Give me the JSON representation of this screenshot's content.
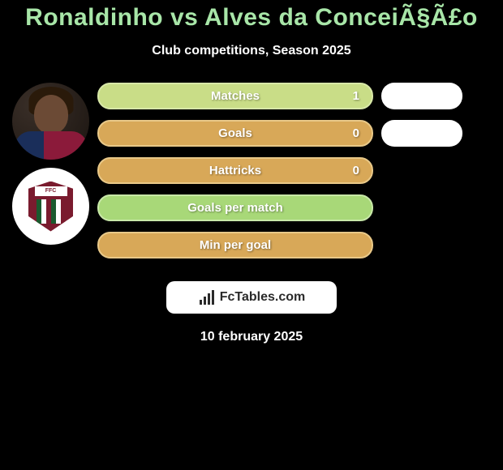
{
  "header": {
    "title": "Ronaldinho vs Alves da ConceiÃ§Ã£o",
    "subtitle": "Club competitions, Season 2025",
    "title_color": "#a8e6a8"
  },
  "stats": [
    {
      "label": "Matches",
      "left_value": "1",
      "left_width": 340,
      "left_bg": "#c9dd87",
      "left_border": "#d8e8a8",
      "left_text_color": "#ffffff",
      "right_width": 100,
      "right_bg": "#ffffff",
      "show_right": true
    },
    {
      "label": "Goals",
      "left_value": "0",
      "left_width": 340,
      "left_bg": "#d8a858",
      "left_border": "#e8c888",
      "left_text_color": "#ffffff",
      "right_width": 100,
      "right_bg": "#ffffff",
      "show_right": true
    },
    {
      "label": "Hattricks",
      "left_value": "0",
      "left_width": 340,
      "left_bg": "#d8a858",
      "left_border": "#e8c888",
      "left_text_color": "#ffffff",
      "right_width": 0,
      "right_bg": "#ffffff",
      "show_right": false
    },
    {
      "label": "Goals per match",
      "left_value": "",
      "left_width": 340,
      "left_bg": "#a8d878",
      "left_border": "#c8e8a8",
      "left_text_color": "#ffffff",
      "right_width": 0,
      "right_bg": "#ffffff",
      "show_right": false
    },
    {
      "label": "Min per goal",
      "left_value": "",
      "left_width": 340,
      "left_bg": "#d8a858",
      "left_border": "#e8c888",
      "left_text_color": "#ffffff",
      "right_width": 0,
      "right_bg": "#ffffff",
      "show_right": false
    }
  ],
  "brand": {
    "text": "FcTables.com"
  },
  "footer": {
    "date": "10 february 2025"
  },
  "colors": {
    "background": "#000000",
    "text_primary": "#ffffff",
    "brand_box_bg": "#ffffff",
    "brand_text": "#2a2a2a"
  }
}
